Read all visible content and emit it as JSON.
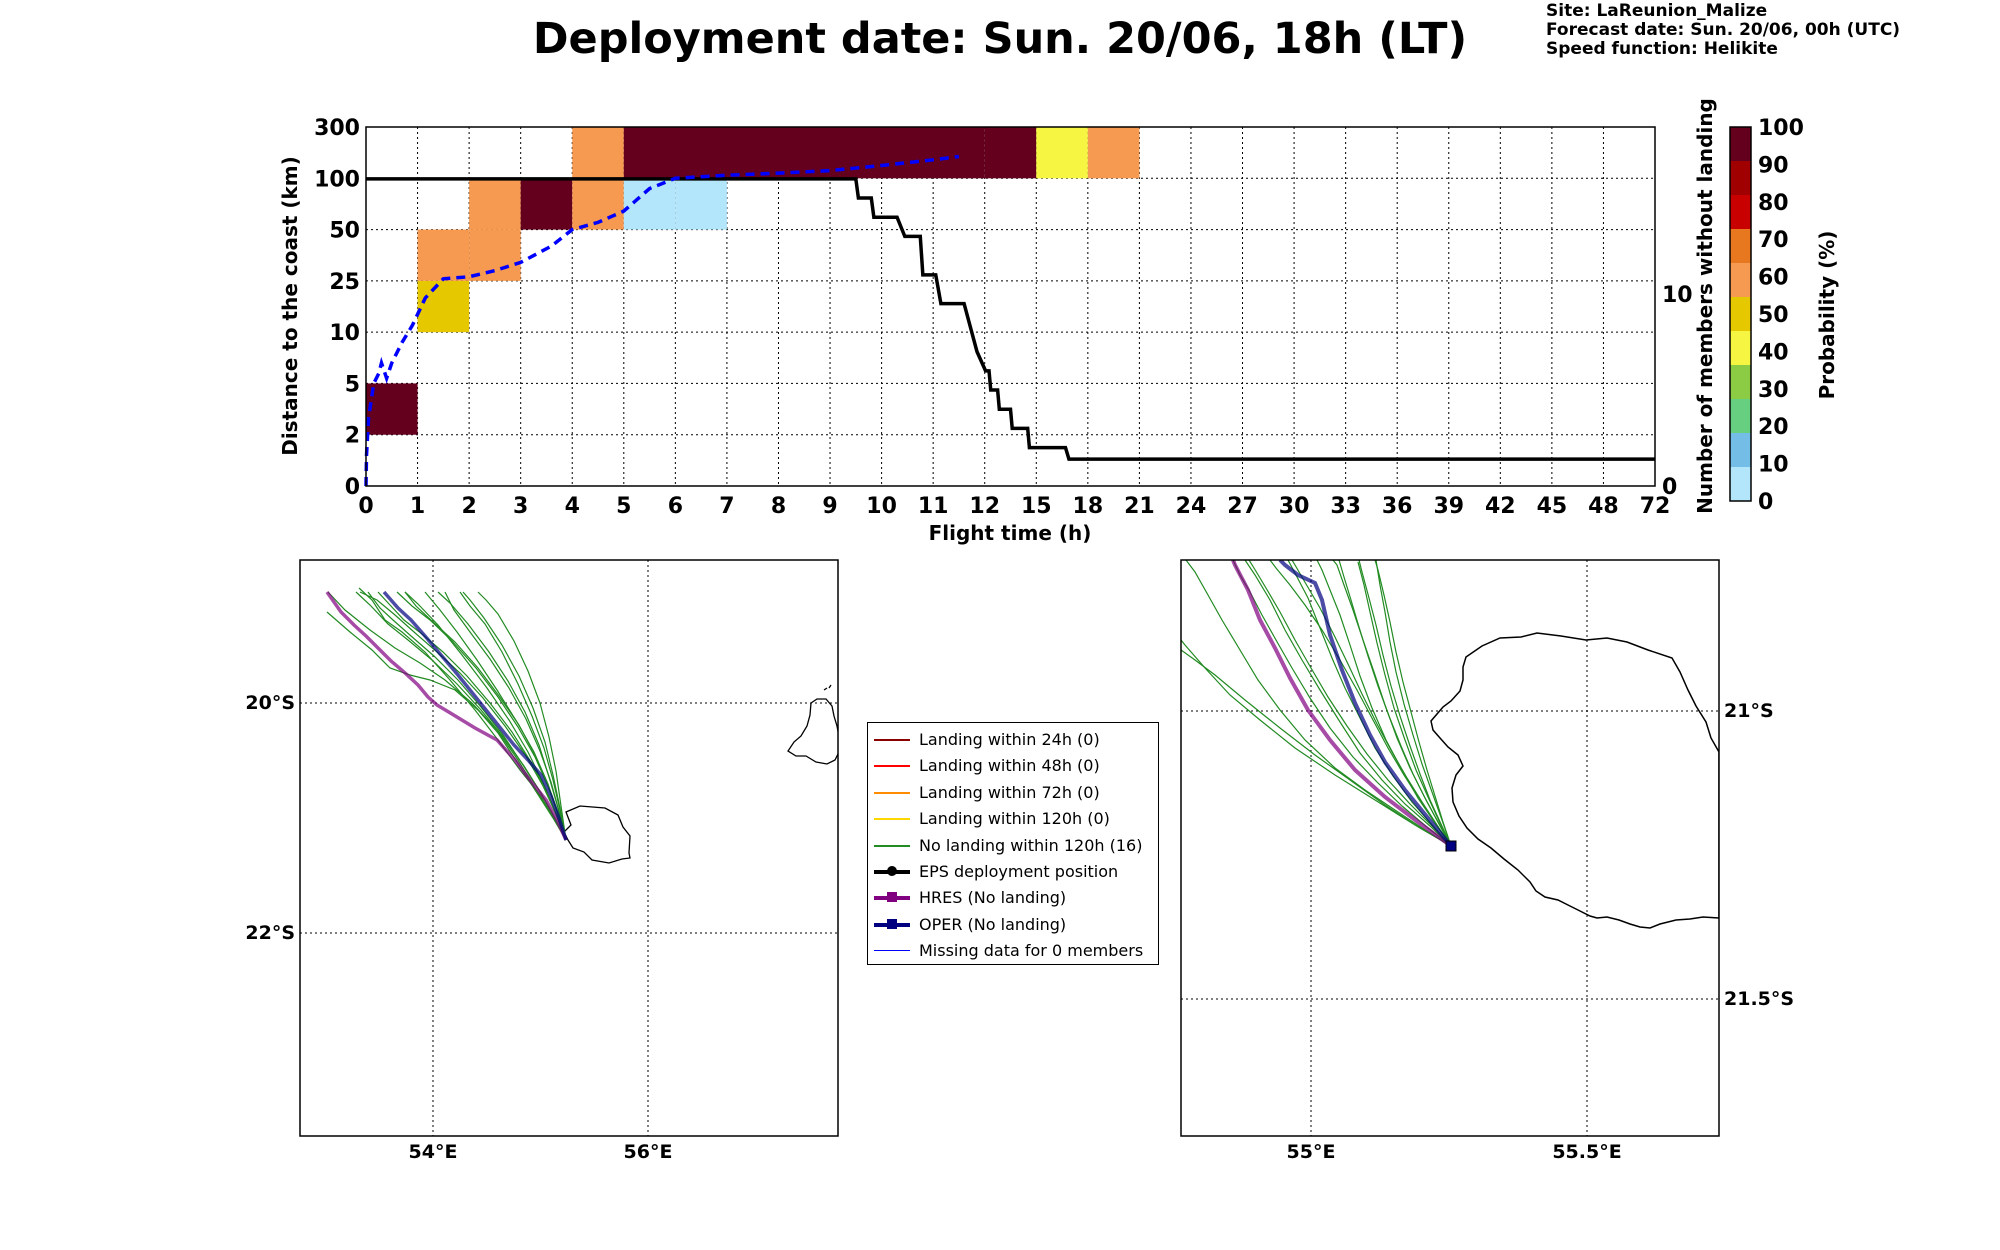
{
  "header": {
    "title": "Deployment date: Sun. 20/06, 18h (LT)",
    "site": "Site: LaReunion_Malize",
    "forecast": "Forecast date: Sun. 20/06, 00h (UTC)",
    "speed": "Speed function: Helikite"
  },
  "chart_data": {
    "type": "heatmap",
    "xlabel": "Flight time (h)",
    "ylabel": "Distance to the coast (km)",
    "ylabel_right": "Number of members without landing",
    "x_ticks": [
      "0",
      "1",
      "2",
      "3",
      "4",
      "5",
      "6",
      "7",
      "8",
      "9",
      "10",
      "11",
      "12",
      "15",
      "18",
      "21",
      "24",
      "27",
      "30",
      "33",
      "36",
      "39",
      "42",
      "45",
      "48",
      "72"
    ],
    "y_ticks": [
      "0",
      "2",
      "5",
      "10",
      "25",
      "50",
      "100",
      "300"
    ],
    "right_ticks": [
      "0",
      "10"
    ],
    "right_ylim": [
      0,
      18.7
    ],
    "colorbar": {
      "label": "Probability (%)",
      "ticks": [
        "0",
        "10",
        "20",
        "30",
        "40",
        "50",
        "60",
        "70",
        "80",
        "90",
        "100"
      ],
      "colors": [
        "#b3e6fa",
        "#73bde6",
        "#66d080",
        "#8ccc44",
        "#f5f542",
        "#e5c800",
        "#f59a50",
        "#e87820",
        "#c80000",
        "#a00000",
        "#64001e"
      ]
    },
    "cells": [
      {
        "x": "0-1",
        "y": "2-5",
        "prob": 100
      },
      {
        "x": "1-2",
        "y": "10-25",
        "prob": 40
      },
      {
        "x": "1-2",
        "y": "25-50",
        "prob": 50
      },
      {
        "x": "2-3",
        "y": "25-50",
        "prob": 50
      },
      {
        "x": "2-3",
        "y": "50-100",
        "prob": 50
      },
      {
        "x": "3-4",
        "y": "50-100",
        "prob": 100
      },
      {
        "x": "4-5",
        "y": "50-100",
        "prob": 50
      },
      {
        "x": "4-5",
        "y": "100-300",
        "prob": 50
      },
      {
        "x": "5-6",
        "y": "50-100",
        "prob": 0
      },
      {
        "x": "6-7",
        "y": "50-100",
        "prob": 0
      },
      {
        "x": "5-12",
        "y": "100-300",
        "prob": 100
      },
      {
        "x": "12-15",
        "y": "100-300",
        "prob": 90
      },
      {
        "x": "15-18",
        "y": "100-300",
        "prob": 30
      },
      {
        "x": "18-21",
        "y": "100-300",
        "prob": 50
      }
    ],
    "series": [
      {
        "name": "Number of members without landing",
        "step_points": [
          [
            0,
            16
          ],
          [
            9.5,
            16
          ],
          [
            9.55,
            15
          ],
          [
            9.8,
            15
          ],
          [
            9.85,
            14
          ],
          [
            10.3,
            14
          ],
          [
            10.45,
            13
          ],
          [
            10.75,
            13
          ],
          [
            10.8,
            11
          ],
          [
            11.05,
            11
          ],
          [
            11.15,
            9.5
          ],
          [
            11.6,
            9.5
          ],
          [
            11.75,
            8
          ],
          [
            11.85,
            7
          ],
          [
            12.05,
            6
          ],
          [
            12.25,
            6
          ],
          [
            12.35,
            5
          ],
          [
            12.75,
            5
          ],
          [
            12.85,
            4
          ],
          [
            13.5,
            4
          ],
          [
            13.6,
            3
          ],
          [
            14.5,
            3
          ],
          [
            14.6,
            2
          ],
          [
            16.7,
            2
          ],
          [
            16.9,
            1.4
          ],
          [
            72,
            1.4
          ]
        ]
      },
      {
        "name": "Mean distance to the coast",
        "points": [
          [
            0,
            0
          ],
          [
            0.01,
            1.2
          ],
          [
            0.05,
            3
          ],
          [
            0.15,
            5
          ],
          [
            0.25,
            6
          ],
          [
            0.3,
            7
          ],
          [
            0.4,
            5.5
          ],
          [
            0.5,
            7
          ],
          [
            0.7,
            9
          ],
          [
            0.9,
            12
          ],
          [
            1.15,
            20
          ],
          [
            1.5,
            26
          ],
          [
            2,
            27
          ],
          [
            2.5,
            30
          ],
          [
            3,
            34
          ],
          [
            3.6,
            42
          ],
          [
            4,
            50
          ],
          [
            4.5,
            57
          ],
          [
            5,
            68
          ],
          [
            5.5,
            90
          ],
          [
            6,
            100
          ],
          [
            7,
            112
          ],
          [
            8,
            120
          ],
          [
            9,
            130
          ],
          [
            10,
            150
          ],
          [
            11,
            172
          ],
          [
            11.5,
            185
          ]
        ]
      }
    ]
  },
  "maps": {
    "left": {
      "lat_labels": [
        "20°S",
        "22°S"
      ],
      "lon_labels": [
        "54°E",
        "56°E"
      ]
    },
    "right": {
      "lat_labels": [
        "21°S",
        "21.5°S"
      ],
      "lon_labels": [
        "55°E",
        "55.5°E"
      ]
    }
  },
  "legend": [
    {
      "label": "Landing within 24h (0)",
      "color": "#8b0000",
      "kind": "line"
    },
    {
      "label": "Landing within 48h (0)",
      "color": "#ff0000",
      "kind": "line"
    },
    {
      "label": "Landing within 72h (0)",
      "color": "#ff8c00",
      "kind": "line"
    },
    {
      "label": "Landing within 120h (0)",
      "color": "#ffd700",
      "kind": "line"
    },
    {
      "label": "No landing within 120h (16)",
      "color": "#228b22",
      "kind": "line"
    },
    {
      "label": "EPS deployment position",
      "color": "#000000",
      "kind": "dot"
    },
    {
      "label": "HRES (No landing)",
      "color": "#800080",
      "kind": "square"
    },
    {
      "label": "OPER (No landing)",
      "color": "#000080",
      "kind": "square"
    },
    {
      "label": "Missing data for 0 members",
      "color": "#0000ff",
      "kind": "thin"
    }
  ]
}
